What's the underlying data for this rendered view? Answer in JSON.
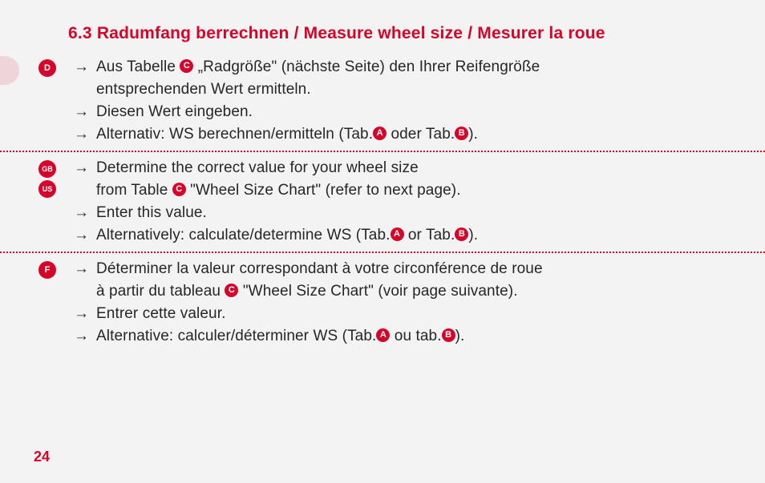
{
  "title": "6.3 Radumfang berrechnen / Measure wheel size / Mesurer la roue",
  "page_number": "24",
  "colors": {
    "accent": "#d3032a",
    "text": "#262626",
    "bg": "#f3f3f3"
  },
  "sections": {
    "de": {
      "lang_tags": [
        "D"
      ],
      "lines": [
        {
          "arrow": true,
          "frags": [
            {
              "t": "text",
              "v": "Aus Tabelle "
            },
            {
              "t": "badge",
              "v": "C"
            },
            {
              "t": "text",
              "v": " „Radgröße\" (nächste Seite) den Ihrer Reifengröße"
            }
          ]
        },
        {
          "arrow": false,
          "frags": [
            {
              "t": "text",
              "v": "entsprechenden Wert ermitteln."
            }
          ]
        },
        {
          "arrow": true,
          "frags": [
            {
              "t": "text",
              "v": "Diesen Wert eingeben."
            }
          ]
        },
        {
          "arrow": true,
          "frags": [
            {
              "t": "text",
              "v": "Alternativ: WS berechnen/ermitteln (Tab."
            },
            {
              "t": "badge",
              "v": "A"
            },
            {
              "t": "text",
              "v": " oder Tab."
            },
            {
              "t": "badge",
              "v": "B"
            },
            {
              "t": "text",
              "v": ")."
            }
          ]
        }
      ]
    },
    "en": {
      "lang_tags": [
        "GB",
        "US"
      ],
      "lines": [
        {
          "arrow": true,
          "frags": [
            {
              "t": "text",
              "v": "Determine the correct value for your wheel size"
            }
          ]
        },
        {
          "arrow": false,
          "frags": [
            {
              "t": "text",
              "v": "from Table "
            },
            {
              "t": "badge",
              "v": "C"
            },
            {
              "t": "text",
              "v": " \"Wheel Size Chart\" (refer to next page)."
            }
          ]
        },
        {
          "arrow": true,
          "frags": [
            {
              "t": "text",
              "v": "Enter this value."
            }
          ]
        },
        {
          "arrow": true,
          "frags": [
            {
              "t": "text",
              "v": "Alternatively: calculate/determine WS (Tab."
            },
            {
              "t": "badge",
              "v": "A"
            },
            {
              "t": "text",
              "v": " or Tab."
            },
            {
              "t": "badge",
              "v": "B"
            },
            {
              "t": "text",
              "v": ")."
            }
          ]
        }
      ]
    },
    "fr": {
      "lang_tags": [
        "F"
      ],
      "lines": [
        {
          "arrow": true,
          "frags": [
            {
              "t": "text",
              "v": "Déterminer la valeur correspondant à votre circonférence de roue"
            }
          ]
        },
        {
          "arrow": false,
          "frags": [
            {
              "t": "text",
              "v": "à partir du tableau "
            },
            {
              "t": "badge",
              "v": "C"
            },
            {
              "t": "text",
              "v": " \"Wheel Size Chart\" (voir page suivante)."
            }
          ]
        },
        {
          "arrow": true,
          "frags": [
            {
              "t": "text",
              "v": "Entrer cette valeur."
            }
          ]
        },
        {
          "arrow": true,
          "frags": [
            {
              "t": "text",
              "v": "Alternative: calculer/déterminer WS (Tab."
            },
            {
              "t": "badge",
              "v": "A"
            },
            {
              "t": "text",
              "v": " ou tab."
            },
            {
              "t": "badge",
              "v": "B"
            },
            {
              "t": "text",
              "v": ")."
            }
          ]
        }
      ]
    }
  }
}
